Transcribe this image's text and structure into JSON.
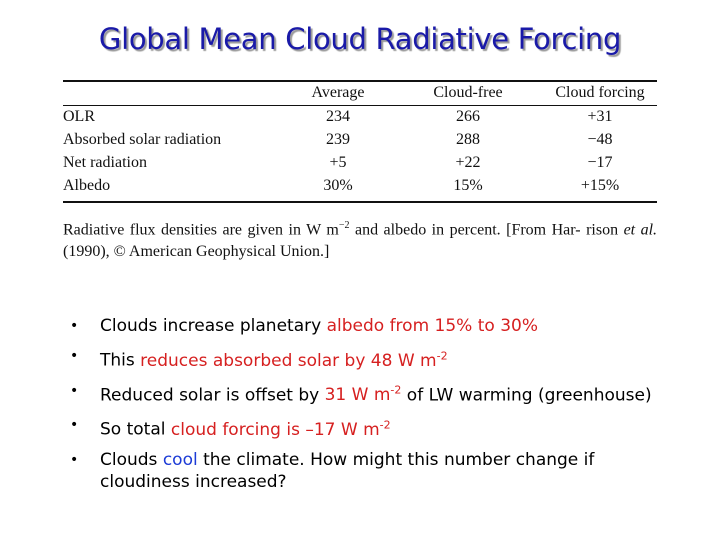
{
  "title": "Global Mean Cloud Radiative Forcing",
  "table": {
    "columns": [
      "",
      "Average",
      "Cloud-free",
      "Cloud forcing"
    ],
    "rows": [
      [
        "OLR",
        "234",
        "266",
        "+31"
      ],
      [
        "Absorbed solar radiation",
        "239",
        "288",
        "−48"
      ],
      [
        "Net radiation",
        "+5",
        "+22",
        "−17"
      ],
      [
        "Albedo",
        "30%",
        "15%",
        "+15%"
      ]
    ],
    "caption_a": "Radiative flux densities are given in W m",
    "caption_sup": "−2",
    "caption_b": " and albedo in percent. [From Har-",
    "caption_c": "rison ",
    "caption_etal": "et al.",
    "caption_d": " (1990), © American Geophysical Union.]"
  },
  "bullets": [
    {
      "t1": "Clouds increase planetary ",
      "r1": "albedo from 15% to 30%"
    },
    {
      "t1": "This ",
      "r1": "reduces absorbed solar by 48 W m",
      "sup": "-2"
    },
    {
      "t1": "Reduced solar is offset by ",
      "r1": "31 W m",
      "sup": "-2",
      "t2": " of LW warming (greenhouse)"
    },
    {
      "t1": "So total ",
      "r1": "cloud forcing is –17 W m",
      "sup": "-2"
    },
    {
      "t1": "Clouds ",
      "b1": "cool",
      "t2": " the climate. How might this number change if cloudiness increased?"
    }
  ]
}
